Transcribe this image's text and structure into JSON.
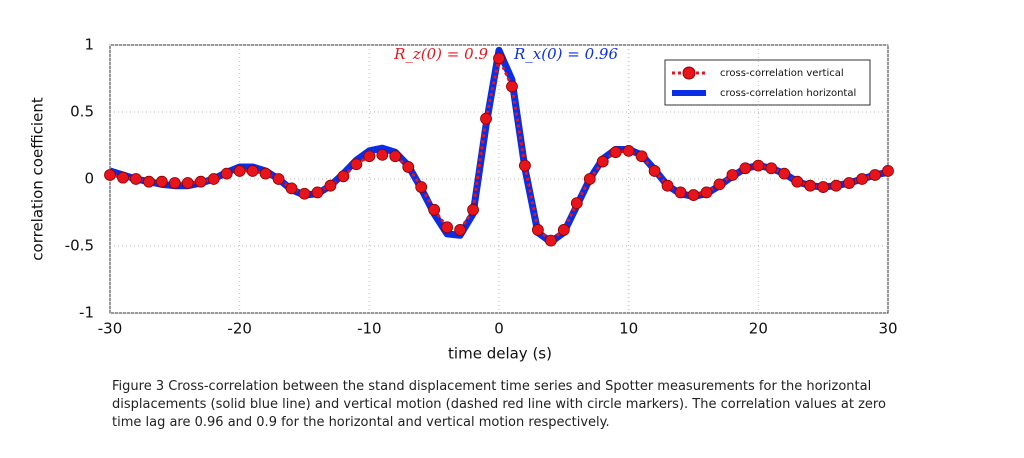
{
  "chart_data": {
    "type": "line",
    "x": [
      -30,
      -29,
      -28,
      -27,
      -26,
      -25,
      -24,
      -23,
      -22,
      -21,
      -20,
      -19,
      -18,
      -17,
      -16,
      -15,
      -14,
      -13,
      -12,
      -11,
      -10,
      -9,
      -8,
      -7,
      -6,
      -5,
      -4,
      -3,
      -2,
      -1,
      0,
      1,
      2,
      3,
      4,
      5,
      6,
      7,
      8,
      9,
      10,
      11,
      12,
      13,
      14,
      15,
      16,
      17,
      18,
      19,
      20,
      21,
      22,
      23,
      24,
      25,
      26,
      27,
      28,
      29,
      30
    ],
    "series": [
      {
        "name": "cross-correlation horizontal",
        "color": "#0a2ee6",
        "values": [
          0.06,
          0.03,
          0.0,
          -0.02,
          -0.04,
          -0.05,
          -0.05,
          -0.03,
          0.0,
          0.05,
          0.09,
          0.09,
          0.06,
          0.0,
          -0.08,
          -0.12,
          -0.11,
          -0.05,
          0.04,
          0.14,
          0.21,
          0.23,
          0.2,
          0.1,
          -0.07,
          -0.26,
          -0.41,
          -0.42,
          -0.26,
          0.4,
          0.96,
          0.74,
          0.08,
          -0.4,
          -0.47,
          -0.4,
          -0.2,
          0.0,
          0.15,
          0.22,
          0.22,
          0.18,
          0.07,
          -0.05,
          -0.11,
          -0.13,
          -0.11,
          -0.05,
          0.02,
          0.08,
          0.1,
          0.08,
          0.04,
          -0.02,
          -0.05,
          -0.06,
          -0.05,
          -0.03,
          0.0,
          0.03,
          0.05
        ]
      },
      {
        "name": "cross-correlation vertical",
        "color": "#e8141c",
        "values": [
          0.03,
          0.01,
          0.0,
          -0.02,
          -0.02,
          -0.03,
          -0.03,
          -0.02,
          0.0,
          0.04,
          0.06,
          0.06,
          0.04,
          0.0,
          -0.07,
          -0.11,
          -0.1,
          -0.05,
          0.02,
          0.11,
          0.17,
          0.18,
          0.17,
          0.09,
          -0.06,
          -0.23,
          -0.36,
          -0.38,
          -0.23,
          0.45,
          0.9,
          0.69,
          0.1,
          -0.38,
          -0.46,
          -0.38,
          -0.18,
          0.0,
          0.13,
          0.2,
          0.21,
          0.17,
          0.06,
          -0.05,
          -0.1,
          -0.12,
          -0.1,
          -0.04,
          0.03,
          0.08,
          0.1,
          0.08,
          0.04,
          -0.02,
          -0.05,
          -0.06,
          -0.05,
          -0.03,
          0.0,
          0.03,
          0.06
        ]
      }
    ],
    "xlabel": "time delay (s)",
    "ylabel": "correlation coefficient",
    "xlim": [
      -30,
      30
    ],
    "xticks": [
      -30,
      -20,
      -10,
      0,
      10,
      20,
      30
    ],
    "ylim": [
      -1,
      1
    ],
    "yticks": [
      -1,
      -0.5,
      0,
      0.5,
      1
    ],
    "grid": true,
    "annotations": [
      "R_z(0) = 0.9",
      "R_x(0) = 0.96"
    ],
    "caption": "Figure 3 Cross-correlation between the stand displacement time series and Spotter measurements for the horizontal displacements (solid blue line) and vertical motion (dashed red line with circle markers). The correlation values at zero time lag are 0.96 and 0.9 for the horizontal and vertical motion respectively."
  }
}
